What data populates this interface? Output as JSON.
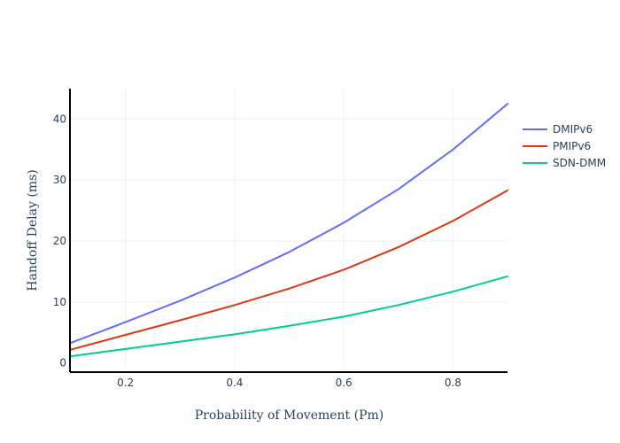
{
  "chart_data": {
    "type": "line",
    "xlabel": "Probability of Movement (Pm)",
    "ylabel": "Handoff Delay (ms)",
    "xlim": [
      0.1,
      0.9
    ],
    "ylim": [
      -1.5,
      45
    ],
    "x_ticks": [
      0.2,
      0.4,
      0.6,
      0.8
    ],
    "x_tick_labels": [
      "0.2",
      "0.4",
      "0.6",
      "0.8"
    ],
    "y_ticks": [
      0,
      10,
      20,
      30,
      40
    ],
    "y_tick_labels": [
      "0",
      "10",
      "20",
      "30",
      "40"
    ],
    "grid": true,
    "legend_position": "right",
    "x": [
      0.1,
      0.2,
      0.3,
      0.4,
      0.5,
      0.6,
      0.7,
      0.8,
      0.9
    ],
    "series": [
      {
        "name": "DMIPv6",
        "color": "#636efa",
        "values": [
          3.3,
          6.7,
          10.2,
          14.0,
          18.2,
          23.0,
          28.5,
          35.0,
          42.5
        ]
      },
      {
        "name": "PMIPv6",
        "color": "#dc3912",
        "values": [
          2.2,
          4.6,
          7.0,
          9.5,
          12.2,
          15.3,
          19.0,
          23.3,
          28.3
        ]
      },
      {
        "name": "SDN-DMM",
        "color": "#00cc96",
        "values": [
          1.1,
          2.3,
          3.5,
          4.7,
          6.1,
          7.6,
          9.5,
          11.7,
          14.2
        ]
      }
    ]
  }
}
